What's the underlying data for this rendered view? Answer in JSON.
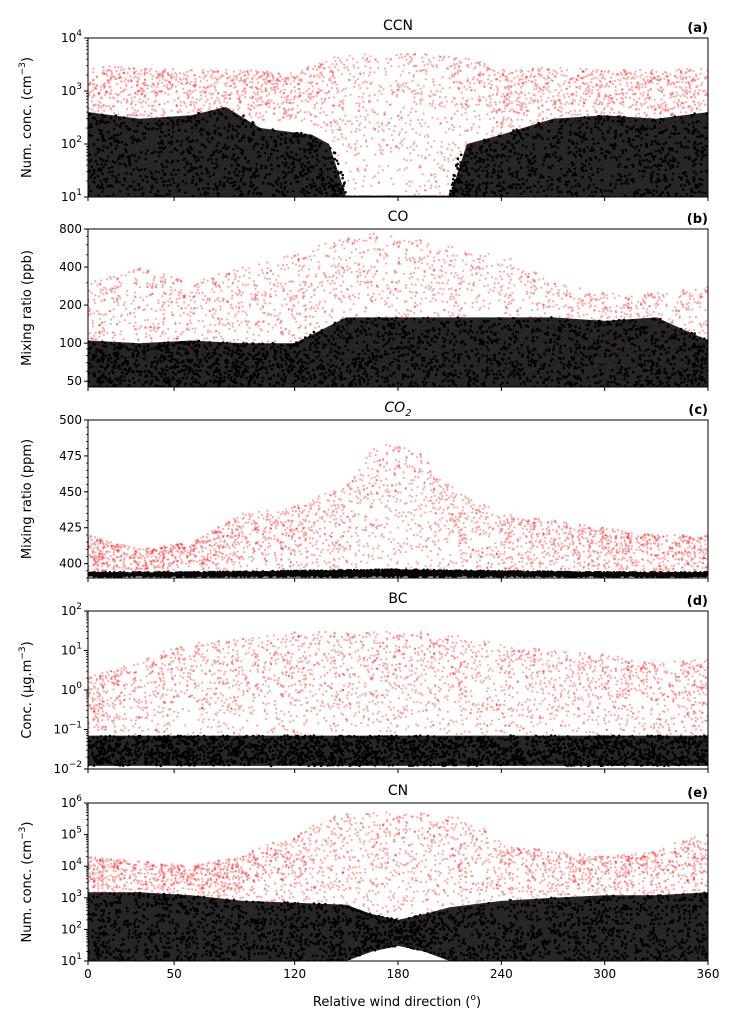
{
  "figure": {
    "xlabel": "Relative wind direction (",
    "xlabel_sup": "o",
    "xlabel_end": ")",
    "x_ticks": [
      0,
      50,
      120,
      180,
      240,
      300,
      360
    ],
    "xlim": [
      0,
      360
    ]
  },
  "colors": {
    "filtered": "#ff0000",
    "unfiltered": "#000000"
  },
  "chart_data": [
    {
      "type": "scatter",
      "panel": "(a)",
      "title": "CCN",
      "ylabel": "Num. conc. (cm",
      "ylabel_sup": "−3",
      "ylabel_end": ")",
      "yscale": "log",
      "ylim": [
        10,
        10000
      ],
      "y_ticks": [
        {
          "value": 10,
          "base": "10",
          "exp": "1"
        },
        {
          "value": 100,
          "base": "10",
          "exp": "2"
        },
        {
          "value": 1000,
          "base": "10",
          "exp": "3"
        },
        {
          "value": 10000,
          "base": "10",
          "exp": "4"
        }
      ],
      "series": [
        {
          "color": "#ff0000",
          "x": [
            0,
            30,
            60,
            90,
            120,
            150,
            165,
            180,
            195,
            210,
            240,
            270,
            300,
            330,
            360
          ],
          "y_low": [
            150,
            200,
            150,
            200,
            300,
            10,
            10,
            10,
            10,
            10,
            150,
            200,
            200,
            150,
            150
          ],
          "y_high": [
            3000,
            2800,
            2500,
            2500,
            2200,
            5000,
            5000,
            5000,
            5000,
            5000,
            2500,
            2800,
            2500,
            2500,
            2800
          ]
        },
        {
          "color": "#000000",
          "x": [
            0,
            30,
            60,
            80,
            100,
            130,
            140,
            150,
            210,
            220,
            240,
            270,
            300,
            330,
            360
          ],
          "y_low": [
            10,
            10,
            10,
            10,
            10,
            10,
            10,
            10,
            10,
            10,
            10,
            10,
            10,
            10,
            10
          ],
          "y_high": [
            400,
            300,
            350,
            500,
            200,
            150,
            100,
            10,
            10,
            100,
            150,
            300,
            350,
            300,
            400
          ]
        }
      ]
    },
    {
      "type": "scatter",
      "panel": "(b)",
      "title": "CO",
      "ylabel": "Mixing ratio (ppb)",
      "yscale": "log",
      "ylim": [
        45,
        800
      ],
      "y_ticks": [
        {
          "value": 50,
          "label": "50"
        },
        {
          "value": 100,
          "label": "100"
        },
        {
          "value": 200,
          "label": "200"
        },
        {
          "value": 400,
          "label": "400"
        },
        {
          "value": 800,
          "label": "800"
        }
      ],
      "series": [
        {
          "color": "#ff0000",
          "x": [
            0,
            30,
            60,
            90,
            120,
            150,
            165,
            180,
            195,
            210,
            240,
            270,
            300,
            330,
            360
          ],
          "y_low": [
            45,
            45,
            45,
            45,
            50,
            50,
            50,
            50,
            50,
            50,
            50,
            45,
            45,
            45,
            45
          ],
          "y_high": [
            300,
            400,
            300,
            400,
            500,
            700,
            750,
            700,
            650,
            600,
            500,
            300,
            250,
            250,
            280
          ]
        },
        {
          "color": "#000000",
          "x": [
            0,
            30,
            60,
            90,
            120,
            150,
            180,
            210,
            240,
            270,
            300,
            330,
            360
          ],
          "y_low": [
            45,
            45,
            45,
            45,
            45,
            45,
            45,
            45,
            45,
            45,
            45,
            45,
            45
          ],
          "y_high": [
            105,
            100,
            105,
            100,
            100,
            160,
            160,
            160,
            160,
            160,
            150,
            160,
            105
          ]
        }
      ]
    },
    {
      "type": "scatter",
      "panel": "(c)",
      "title": "CO",
      "title_sub": "2",
      "ylabel": "Mixing ratio (ppm)",
      "yscale": "linear",
      "ylim": [
        390,
        500
      ],
      "y_ticks": [
        {
          "value": 400,
          "label": "400"
        },
        {
          "value": 425,
          "label": "425"
        },
        {
          "value": 450,
          "label": "450"
        },
        {
          "value": 475,
          "label": "475"
        },
        {
          "value": 500,
          "label": "500"
        }
      ],
      "series": [
        {
          "color": "#ff0000",
          "x": [
            0,
            30,
            60,
            90,
            120,
            150,
            165,
            180,
            195,
            210,
            240,
            270,
            300,
            330,
            360
          ],
          "y_low": [
            392,
            392,
            392,
            392,
            392,
            392,
            392,
            392,
            392,
            392,
            392,
            392,
            392,
            392,
            392
          ],
          "y_high": [
            420,
            410,
            415,
            435,
            440,
            455,
            480,
            485,
            475,
            455,
            435,
            430,
            425,
            420,
            420
          ]
        },
        {
          "color": "#000000",
          "x": [
            0,
            60,
            120,
            180,
            240,
            300,
            360
          ],
          "y_low": [
            391,
            391,
            391,
            391,
            391,
            391,
            391
          ],
          "y_high": [
            394,
            394,
            395,
            396,
            395,
            394,
            394
          ]
        }
      ]
    },
    {
      "type": "scatter",
      "panel": "(d)",
      "title": "BC",
      "ylabel": "Conc. (μg.m",
      "ylabel_sup": "−3",
      "ylabel_end": ")",
      "yscale": "log",
      "ylim": [
        0.01,
        100
      ],
      "y_ticks": [
        {
          "value": 0.01,
          "base": "10",
          "exp": "−2"
        },
        {
          "value": 0.1,
          "base": "10",
          "exp": "−1"
        },
        {
          "value": 1,
          "base": "10",
          "exp": "0"
        },
        {
          "value": 10,
          "base": "10",
          "exp": "1"
        },
        {
          "value": 100,
          "base": "10",
          "exp": "2"
        }
      ],
      "series": [
        {
          "color": "#ff0000",
          "x": [
            0,
            30,
            60,
            90,
            120,
            150,
            165,
            180,
            195,
            210,
            240,
            270,
            300,
            330,
            360
          ],
          "y_low": [
            0.07,
            0.07,
            0.07,
            0.07,
            0.07,
            0.07,
            0.07,
            0.07,
            0.07,
            0.07,
            0.07,
            0.07,
            0.07,
            0.07,
            0.07
          ],
          "y_high": [
            2,
            5,
            15,
            20,
            30,
            30,
            30,
            30,
            30,
            25,
            15,
            10,
            8,
            5,
            6
          ]
        },
        {
          "color": "#000000",
          "x": [
            0,
            60,
            120,
            180,
            240,
            300,
            360
          ],
          "y_low": [
            0.012,
            0.012,
            0.012,
            0.012,
            0.012,
            0.012,
            0.012
          ],
          "y_high": [
            0.07,
            0.07,
            0.07,
            0.07,
            0.07,
            0.07,
            0.07
          ]
        }
      ]
    },
    {
      "type": "scatter",
      "panel": "(e)",
      "title": "CN",
      "ylabel": "Num. conc. (cm",
      "ylabel_sup": "−3",
      "ylabel_end": ")",
      "yscale": "log",
      "ylim": [
        10,
        1000000
      ],
      "y_ticks": [
        {
          "value": 10,
          "base": "10",
          "exp": "1"
        },
        {
          "value": 100,
          "base": "10",
          "exp": "2"
        },
        {
          "value": 1000,
          "base": "10",
          "exp": "3"
        },
        {
          "value": 10000,
          "base": "10",
          "exp": "4"
        },
        {
          "value": 100000,
          "base": "10",
          "exp": "5"
        },
        {
          "value": 1000000,
          "base": "10",
          "exp": "6"
        }
      ],
      "series": [
        {
          "color": "#ff0000",
          "x": [
            0,
            30,
            60,
            90,
            120,
            150,
            165,
            180,
            195,
            210,
            240,
            270,
            300,
            330,
            360
          ],
          "y_low": [
            1000,
            1000,
            1000,
            800,
            500,
            200,
            100,
            100,
            100,
            200,
            500,
            800,
            1000,
            1000,
            1000
          ],
          "y_high": [
            20000,
            15000,
            10000,
            20000,
            80000,
            500000,
            500000,
            500000,
            500000,
            400000,
            50000,
            30000,
            20000,
            30000,
            100000
          ]
        },
        {
          "color": "#000000",
          "x": [
            0,
            30,
            60,
            90,
            120,
            150,
            165,
            180,
            195,
            210,
            240,
            270,
            300,
            330,
            360
          ],
          "y_low": [
            10,
            10,
            10,
            10,
            10,
            10,
            20,
            30,
            20,
            10,
            10,
            10,
            10,
            10,
            10
          ],
          "y_high": [
            1500,
            1500,
            1200,
            800,
            700,
            600,
            300,
            200,
            300,
            500,
            800,
            1000,
            1200,
            1200,
            1500
          ]
        }
      ]
    }
  ]
}
